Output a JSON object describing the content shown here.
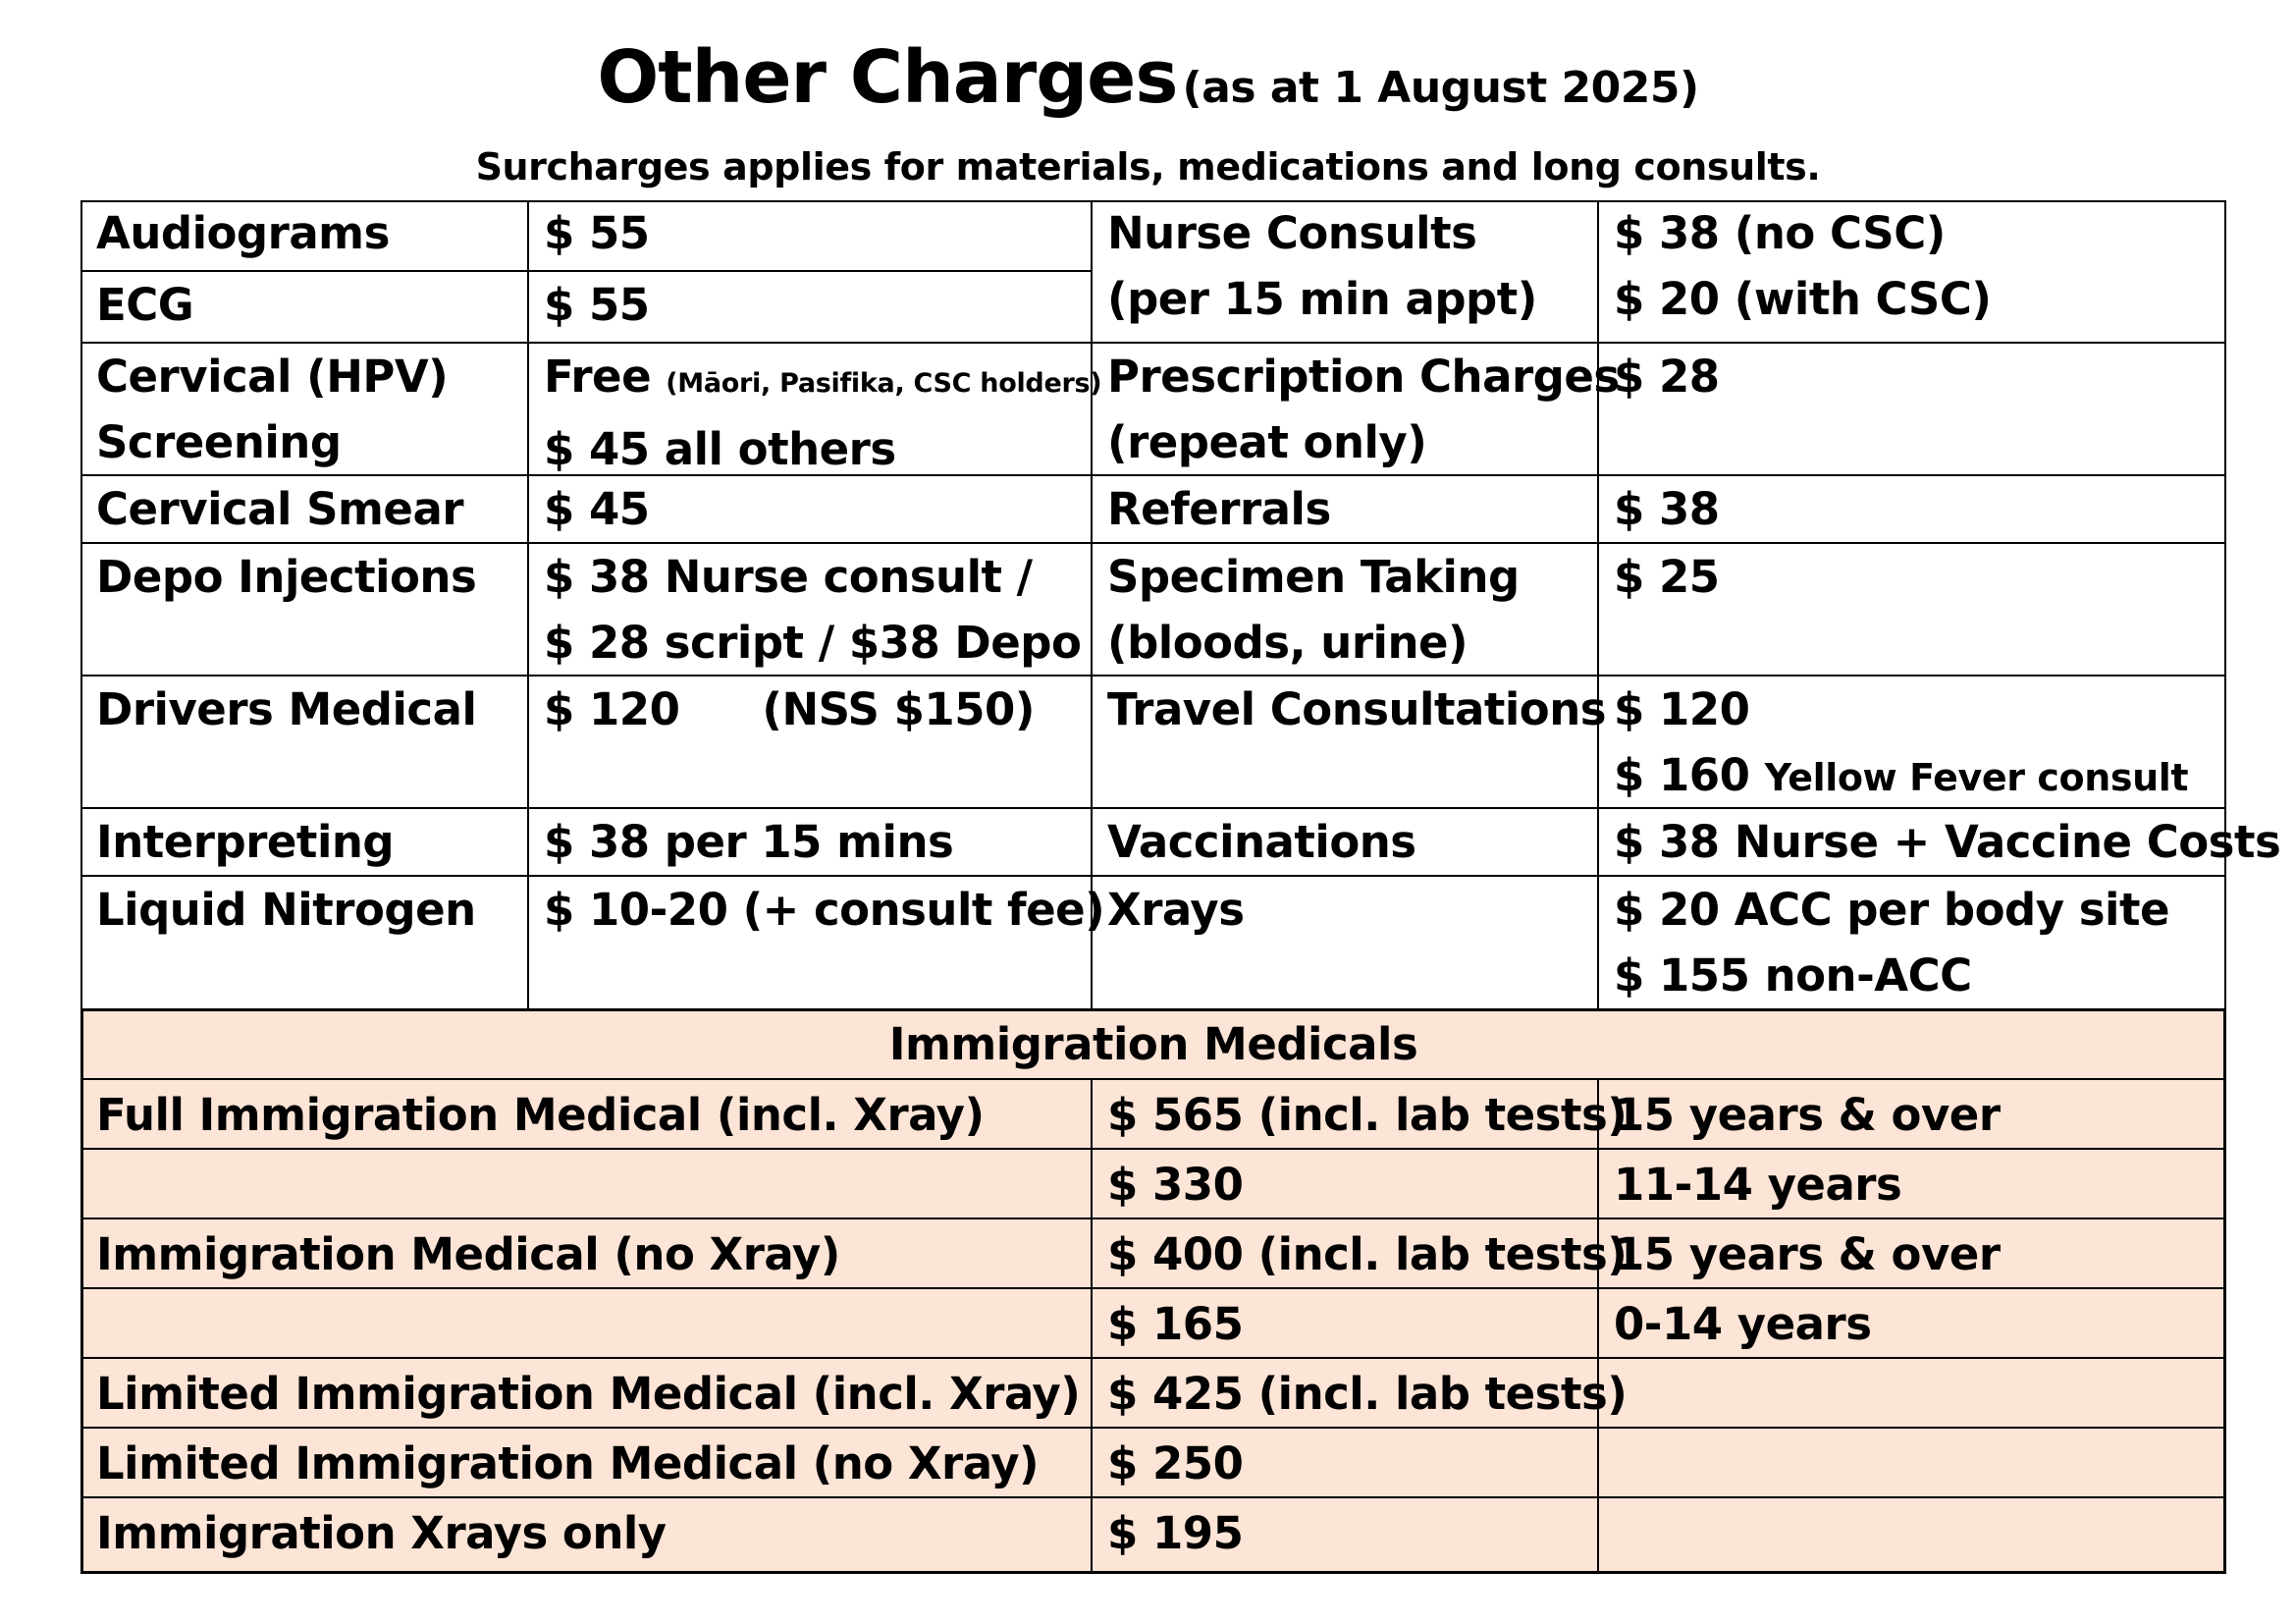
{
  "title": {
    "main": "Other Charges",
    "sub": "(as at 1 August 2025)"
  },
  "note": "Surcharges applies for materials, medications and long consults.",
  "charges_left": [
    {
      "service": [
        "Audiograms"
      ],
      "price": [
        "$ 55"
      ]
    },
    {
      "service": [
        "ECG"
      ],
      "price": [
        "$ 55"
      ]
    },
    {
      "service": [
        "Cervical (HPV)",
        "Screening"
      ],
      "price_free": "Free",
      "price_free_note": "(Māori, Pasifika, CSC holders)",
      "price_line2": "$ 45 all others"
    },
    {
      "service": [
        "Cervical Smear"
      ],
      "price": [
        "$ 45"
      ]
    },
    {
      "service": [
        "Depo Injections"
      ],
      "price": [
        "$ 38 Nurse consult /",
        "$ 28 script / $38 Depo"
      ]
    },
    {
      "service": [
        "Drivers Medical"
      ],
      "price_main": "$ 120",
      "price_extra": "(NSS $150)"
    },
    {
      "service": [
        "Interpreting"
      ],
      "price": [
        "$ 38 per 15 mins"
      ]
    },
    {
      "service": [
        "Liquid Nitrogen"
      ],
      "price": [
        "$ 10-20 (+ consult fee)"
      ]
    }
  ],
  "charges_right": [
    {
      "service": [
        "Nurse Consults",
        "(per 15 min appt)"
      ],
      "price": [
        "$ 38 (no CSC)",
        "$ 20 (with CSC)"
      ]
    },
    {
      "service": [
        "Prescription Charges",
        "(repeat only)"
      ],
      "price": [
        "$ 28"
      ]
    },
    {
      "service": [
        "Referrals"
      ],
      "price": [
        "$ 38"
      ]
    },
    {
      "service": [
        "Specimen Taking",
        "(bloods, urine)"
      ],
      "price": [
        "$ 25"
      ]
    },
    {
      "service": [
        "Travel Consultations"
      ],
      "price_line1": "$ 120",
      "price_line2_main": "$ 160",
      "price_line2_note": "Yellow Fever consult"
    },
    {
      "service": [
        "Vaccinations"
      ],
      "price": [
        "$ 38 Nurse + Vaccine Costs"
      ]
    },
    {
      "service": [
        "Xrays"
      ],
      "price": [
        "$ 20 ACC per body site",
        "$ 155 non-ACC"
      ]
    }
  ],
  "immigration": {
    "heading": "Immigration Medicals",
    "rows": [
      {
        "name": "Full Immigration Medical (incl. Xray)",
        "price": "$ 565 (incl. lab tests)",
        "age": "15 years & over"
      },
      {
        "name": "",
        "price": "$ 330",
        "age": "11-14 years"
      },
      {
        "name": "Immigration Medical (no Xray)",
        "price": "$ 400 (incl. lab tests)",
        "age": "15 years & over"
      },
      {
        "name": "",
        "price": "$ 165",
        "age": "0-14 years"
      },
      {
        "name": "Limited Immigration Medical (incl. Xray)",
        "price": "$ 425 (incl. lab tests)",
        "age": ""
      },
      {
        "name": "Limited Immigration Medical (no Xray)",
        "price": "$ 250",
        "age": ""
      },
      {
        "name": "Immigration Xrays only",
        "price": "$ 195",
        "age": ""
      }
    ]
  },
  "colors": {
    "immigration_background": "#fce4d6",
    "border": "#000000"
  }
}
